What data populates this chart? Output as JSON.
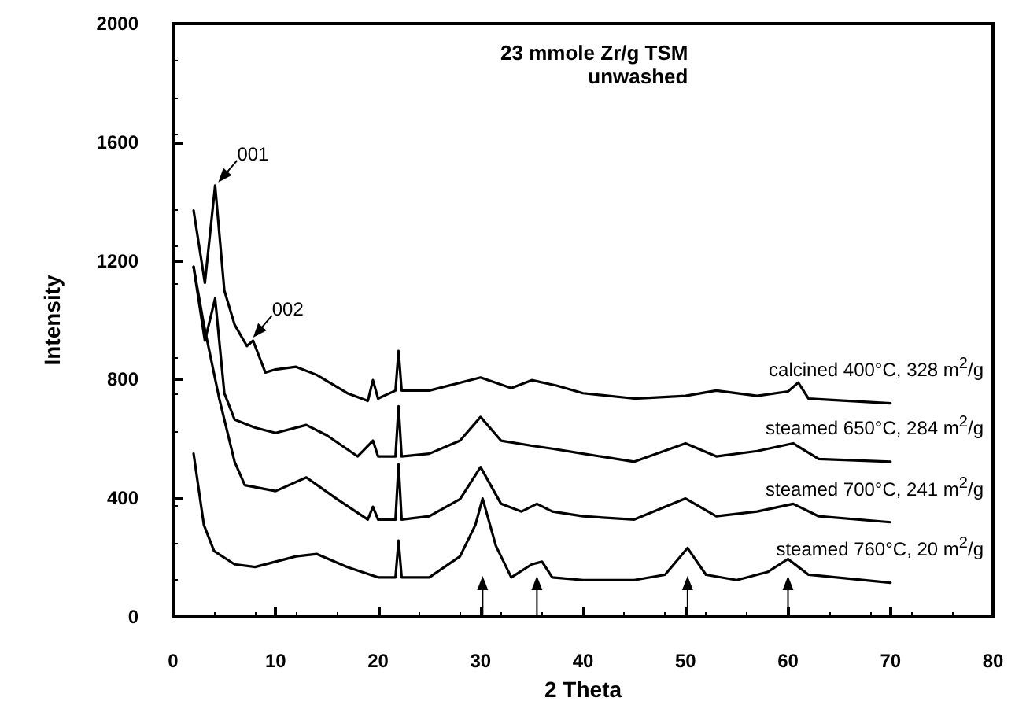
{
  "chart_data": {
    "type": "line",
    "title": "23 mmole Zr/g TSM",
    "subtitle": "unwashed",
    "xlabel": "2 Theta",
    "ylabel": "Intensity",
    "xlim": [
      0,
      80
    ],
    "xticks": [
      0,
      10,
      20,
      30,
      40,
      50,
      60,
      70,
      80
    ],
    "ylim": [
      0,
      2000
    ],
    "yticks": [
      0,
      400,
      800,
      1200,
      1600,
      2000
    ],
    "grid": false,
    "legend": false,
    "marker": "none",
    "line_style": "solid",
    "annotations": [
      {
        "text": "001",
        "x": 4.1,
        "y": 1454
      },
      {
        "text": "002",
        "x": 7.5,
        "y": 931
      }
    ],
    "series": [
      {
        "name": "calcined 400°C, 328 m$^{2}$/g",
        "color": "#000000",
        "x": [
          2,
          3.1,
          4.1,
          5,
          6,
          7.2,
          7.8,
          9,
          10,
          12,
          14,
          17,
          19,
          19.5,
          20,
          21.7,
          22,
          22.3,
          25,
          30,
          33,
          35,
          37.4,
          40,
          45,
          50,
          53,
          57,
          60,
          61,
          62,
          65,
          70
        ],
        "values": [
          1370,
          1126,
          1454,
          1100,
          985,
          913,
          931,
          824,
          834,
          843,
          816,
          754,
          728,
          798,
          736,
          763,
          896,
          763,
          763,
          807,
          771,
          798,
          780,
          754,
          736,
          745,
          763,
          745,
          760,
          790,
          736,
          730,
          720
        ]
      },
      {
        "name": "steamed 650°C, 284 m$^{2}$/g",
        "color": "#000000",
        "x": [
          2,
          3.1,
          4.1,
          5,
          6,
          8,
          10,
          13,
          15,
          18,
          19.5,
          20,
          21.7,
          22,
          22.3,
          25,
          28,
          30,
          32,
          35,
          37,
          40,
          45,
          50,
          53,
          57,
          60.5,
          63,
          70
        ],
        "values": [
          1180,
          931,
          1073,
          754,
          665,
          638,
          620,
          647,
          612,
          541,
          594,
          541,
          541,
          710,
          541,
          550,
          594,
          674,
          594,
          577,
          567,
          550,
          523,
          585,
          541,
          559,
          585,
          532,
          523
        ]
      },
      {
        "name": "steamed 700°C, 241 m$^{2}$/g",
        "color": "#000000",
        "x": [
          2,
          3,
          4.5,
          6,
          7,
          10,
          13,
          16,
          19,
          19.5,
          20,
          21.7,
          22,
          22.3,
          25,
          28,
          30,
          32,
          34,
          35.5,
          37,
          40,
          45,
          50,
          53,
          57,
          60.5,
          63,
          70
        ],
        "values": [
          1180,
          985,
          736,
          523,
          444,
          424,
          470,
          397,
          328,
          371,
          328,
          328,
          514,
          328,
          339,
          397,
          505,
          381,
          355,
          381,
          355,
          339,
          328,
          399,
          339,
          355,
          381,
          339,
          319
        ]
      },
      {
        "name": "steamed 760°C, 20 m$^{2}$/g",
        "color": "#000000",
        "x": [
          2,
          3,
          4,
          6,
          8,
          12,
          14,
          17,
          20,
          21.7,
          22,
          22.3,
          25,
          28,
          29.5,
          30.2,
          31.5,
          33,
          35,
          36,
          37,
          40,
          45,
          48,
          50.2,
          52,
          55,
          58,
          60,
          62,
          70
        ],
        "values": [
          550,
          310,
          222,
          177,
          168,
          204,
          212,
          168,
          133,
          133,
          257,
          133,
          133,
          204,
          310,
          399,
          239,
          133,
          177,
          186,
          133,
          124,
          124,
          142,
          232,
          142,
          124,
          151,
          195,
          142,
          115
        ]
      }
    ]
  }
}
